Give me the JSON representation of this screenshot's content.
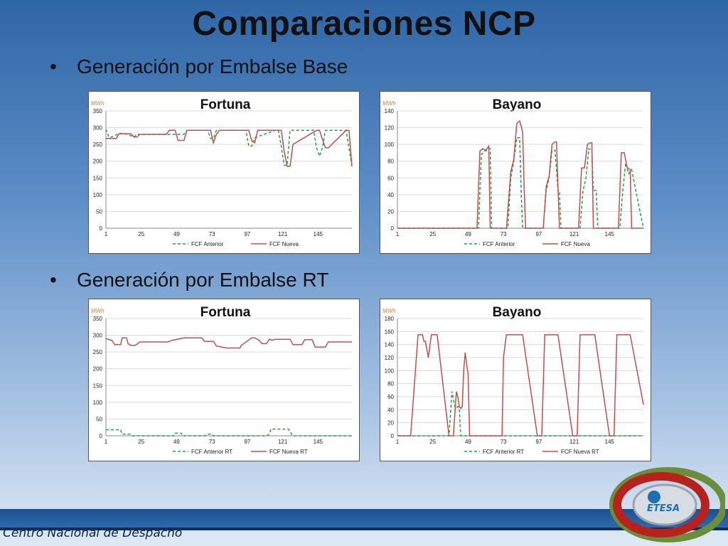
{
  "slide": {
    "title": "Comparaciones NCP",
    "bullets": [
      "Generación por Embalse Base",
      "Generación por Embalse RT"
    ],
    "bullet_symbol": "•",
    "footer": "Centro Nacional de Despacho",
    "logo_text": "ETESA"
  },
  "chart_data": [
    {
      "type": "line",
      "title": "Fortuna",
      "ylabel": "MWh",
      "ylim": [
        0,
        350
      ],
      "yticks": [
        0,
        50,
        100,
        150,
        200,
        250,
        300,
        350
      ],
      "xticks": [
        1,
        25,
        49,
        73,
        97,
        121,
        145
      ],
      "xlim": [
        1,
        168
      ],
      "grid": true,
      "legend": "bottom",
      "series": [
        {
          "name": "FCF Anterior",
          "color": "#1aa34a",
          "dashed": true,
          "x": [
            1,
            3,
            5,
            10,
            14,
            20,
            22,
            24,
            30,
            40,
            43,
            45,
            47,
            50,
            54,
            56,
            70,
            72,
            74,
            76,
            78,
            96,
            98,
            100,
            102,
            116,
            118,
            120,
            122,
            124,
            126,
            142,
            144,
            146,
            148,
            150,
            164,
            166,
            168
          ],
          "y": [
            295,
            272,
            272,
            283,
            283,
            272,
            280,
            280,
            280,
            280,
            280,
            280,
            280,
            280,
            280,
            292,
            292,
            268,
            268,
            292,
            292,
            292,
            245,
            245,
            270,
            292,
            292,
            245,
            188,
            188,
            292,
            292,
            240,
            215,
            240,
            292,
            292,
            240,
            185
          ]
        },
        {
          "name": "FCF Nueva",
          "color": "#c0504d",
          "dashed": false,
          "x": [
            1,
            8,
            10,
            12,
            14,
            18,
            20,
            22,
            24,
            42,
            44,
            48,
            50,
            54,
            56,
            72,
            74,
            76,
            78,
            98,
            100,
            102,
            104,
            120,
            122,
            124,
            126,
            128,
            144,
            146,
            148,
            150,
            152,
            164,
            166,
            168
          ],
          "y": [
            268,
            268,
            282,
            282,
            282,
            282,
            272,
            272,
            280,
            280,
            292,
            292,
            262,
            262,
            292,
            292,
            255,
            280,
            292,
            292,
            260,
            255,
            292,
            292,
            230,
            185,
            185,
            250,
            292,
            292,
            265,
            240,
            240,
            292,
            292,
            185
          ]
        }
      ]
    },
    {
      "type": "line",
      "title": "Bayano",
      "ylabel": "MWh",
      "ylim": [
        0,
        140
      ],
      "yticks": [
        0,
        20,
        40,
        60,
        80,
        100,
        120,
        140
      ],
      "xticks": [
        1,
        25,
        49,
        73,
        97,
        121,
        145
      ],
      "xlim": [
        1,
        168
      ],
      "grid": true,
      "legend": "bottom",
      "series": [
        {
          "name": "FCF Anterior",
          "color": "#1aa34a",
          "dashed": true,
          "x": [
            1,
            56,
            58,
            60,
            62,
            63,
            64,
            65,
            66,
            68,
            76,
            78,
            80,
            82,
            84,
            85,
            86,
            87,
            100,
            102,
            104,
            106,
            108,
            110,
            111,
            112,
            125,
            127,
            129,
            131,
            133,
            134,
            136,
            137,
            152,
            154,
            156,
            158,
            160,
            168
          ],
          "y": [
            0,
            0,
            88,
            92,
            93,
            95,
            95,
            0,
            0,
            0,
            0,
            60,
            80,
            108,
            108,
            45,
            0,
            0,
            0,
            45,
            60,
            93,
            93,
            45,
            45,
            0,
            0,
            45,
            60,
            95,
            93,
            45,
            45,
            0,
            0,
            45,
            78,
            65,
            70,
            0
          ]
        },
        {
          "name": "FCF Nueva",
          "color": "#c0504d",
          "dashed": false,
          "x": [
            1,
            55,
            57,
            59,
            61,
            63,
            64,
            66,
            75,
            78,
            80,
            82,
            84,
            85,
            86,
            87,
            88,
            100,
            102,
            104,
            106,
            108,
            109,
            110,
            111,
            124,
            126,
            128,
            130,
            132,
            133,
            134,
            151,
            153,
            155,
            157,
            159,
            160,
            168
          ],
          "y": [
            0,
            0,
            92,
            95,
            93,
            98,
            0,
            0,
            0,
            68,
            82,
            125,
            128,
            122,
            115,
            50,
            0,
            0,
            50,
            62,
            100,
            103,
            103,
            50,
            0,
            0,
            72,
            72,
            100,
            102,
            102,
            0,
            0,
            90,
            90,
            72,
            70,
            0,
            0
          ]
        }
      ]
    },
    {
      "type": "line",
      "title": "Fortuna",
      "ylabel": "MWh",
      "ylim": [
        0,
        350
      ],
      "yticks": [
        0,
        50,
        100,
        150,
        200,
        250,
        300,
        350
      ],
      "xticks": [
        1,
        25,
        49,
        73,
        97,
        121,
        145
      ],
      "xlim": [
        1,
        168
      ],
      "grid": true,
      "legend": "bottom",
      "series": [
        {
          "name": "FCF Anterior RT",
          "color": "#1aa34a",
          "dashed": true,
          "x": [
            1,
            11,
            12,
            18,
            19,
            25,
            26,
            47,
            48,
            52,
            53,
            68,
            70,
            73,
            74,
            110,
            112,
            113,
            125,
            127,
            128,
            168
          ],
          "y": [
            18,
            18,
            5,
            5,
            0,
            0,
            0,
            0,
            8,
            8,
            0,
            0,
            5,
            5,
            0,
            0,
            5,
            20,
            20,
            5,
            0,
            0
          ]
        },
        {
          "name": "FCF Nueva RT",
          "color": "#c0504d",
          "dashed": false,
          "x": [
            1,
            5,
            7,
            11,
            12,
            15,
            16,
            18,
            21,
            24,
            26,
            43,
            46,
            54,
            66,
            68,
            74,
            76,
            83,
            86,
            87,
            92,
            93,
            100,
            102,
            105,
            107,
            110,
            112,
            114,
            116,
            126,
            128,
            134,
            136,
            141,
            143,
            150,
            152,
            168
          ],
          "y": [
            290,
            285,
            272,
            272,
            292,
            292,
            275,
            270,
            270,
            280,
            280,
            280,
            285,
            292,
            292,
            282,
            282,
            268,
            262,
            262,
            262,
            262,
            270,
            292,
            292,
            285,
            275,
            275,
            288,
            285,
            288,
            288,
            272,
            272,
            287,
            287,
            265,
            265,
            280,
            280
          ]
        }
      ]
    },
    {
      "type": "line",
      "title": "Bayano",
      "ylabel": "MWh",
      "ylim": [
        0,
        180
      ],
      "yticks": [
        0,
        20,
        40,
        60,
        80,
        100,
        120,
        140,
        160,
        180
      ],
      "xticks": [
        1,
        25,
        49,
        73,
        97,
        121,
        145
      ],
      "xlim": [
        1,
        168
      ],
      "grid": true,
      "legend": "bottom",
      "series": [
        {
          "name": "FCF Anterior RT",
          "color": "#1aa34a",
          "dashed": true,
          "x": [
            1,
            36,
            38,
            40,
            41,
            42,
            43,
            44,
            168
          ],
          "y": [
            0,
            0,
            68,
            45,
            42,
            45,
            42,
            0,
            0
          ]
        },
        {
          "name": "FCF Nueva RT",
          "color": "#c0504d",
          "dashed": false,
          "x": [
            1,
            8,
            10,
            15,
            17,
            18,
            19,
            20,
            22,
            24,
            25,
            26,
            28,
            36,
            37,
            39,
            41,
            42,
            43,
            44,
            45,
            46,
            47,
            48,
            49,
            50,
            52,
            57,
            59,
            61,
            72,
            73,
            75,
            77,
            82,
            84,
            86,
            96,
            97,
            99,
            101,
            106,
            108,
            110,
            120,
            121,
            123,
            125,
            131,
            133,
            135,
            145,
            146,
            148,
            150,
            155,
            157,
            159,
            168
          ],
          "y": [
            0,
            0,
            0,
            155,
            155,
            155,
            145,
            145,
            120,
            155,
            155,
            155,
            155,
            0,
            0,
            0,
            68,
            60,
            45,
            42,
            45,
            100,
            128,
            110,
            95,
            0,
            0,
            0,
            0,
            0,
            0,
            120,
            155,
            155,
            155,
            155,
            155,
            0,
            0,
            0,
            155,
            155,
            155,
            155,
            0,
            0,
            0,
            155,
            155,
            155,
            155,
            0,
            0,
            0,
            155,
            155,
            155,
            155,
            48
          ]
        }
      ]
    }
  ]
}
